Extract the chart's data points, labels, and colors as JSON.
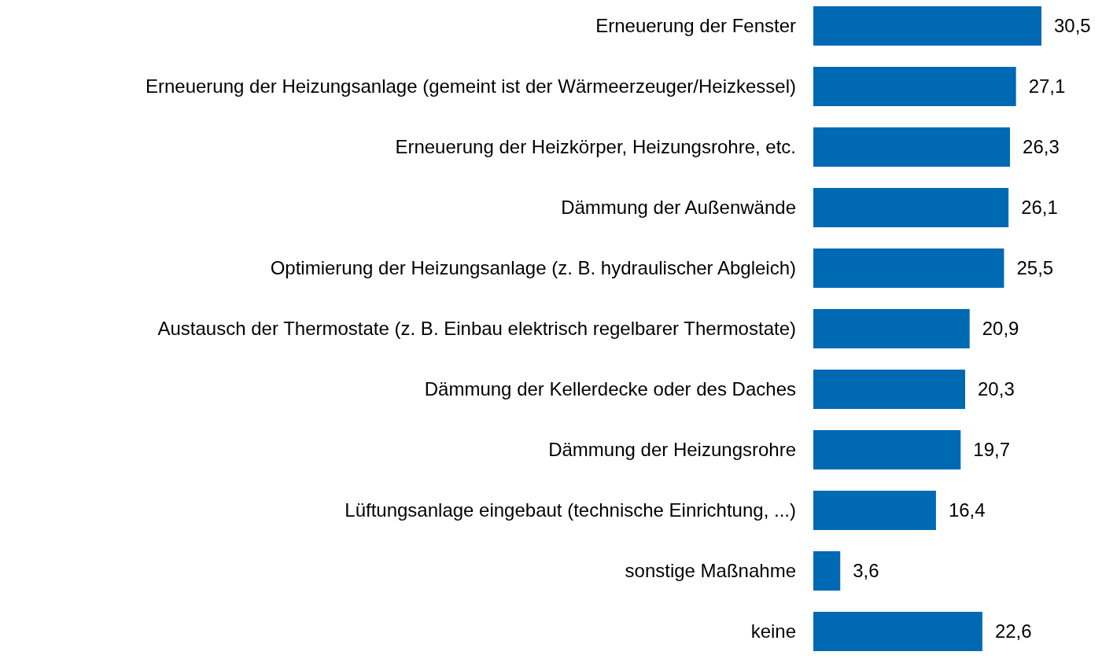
{
  "chart_data": {
    "type": "bar",
    "orientation": "horizontal",
    "categories": [
      "Erneuerung der Fenster",
      "Erneuerung der Heizungsanlage (gemeint ist der Wärmeerzeuger/Heizkessel)",
      "Erneuerung der Heizkörper, Heizungsrohre, etc.",
      "Dämmung der Außenwände",
      "Optimierung der Heizungsanlage (z. B. hydraulischer Abgleich)",
      "Austausch der Thermostate (z. B. Einbau elektrisch regelbarer Thermostate)",
      "Dämmung der Kellerdecke oder des Daches",
      "Dämmung der Heizungsrohre",
      "Lüftungsanlage eingebaut (technische Einrichtung, ...)",
      "sonstige Maßnahme",
      "keine"
    ],
    "values": [
      30.5,
      27.1,
      26.3,
      26.1,
      25.5,
      20.9,
      20.3,
      19.7,
      16.4,
      3.6,
      22.6
    ],
    "value_labels": [
      "30,5",
      "27,1",
      "26,3",
      "26,1",
      "25,5",
      "20,9",
      "20,3",
      "19,7",
      "16,4",
      "3,6",
      "22,6"
    ],
    "color": "#0069b4"
  }
}
